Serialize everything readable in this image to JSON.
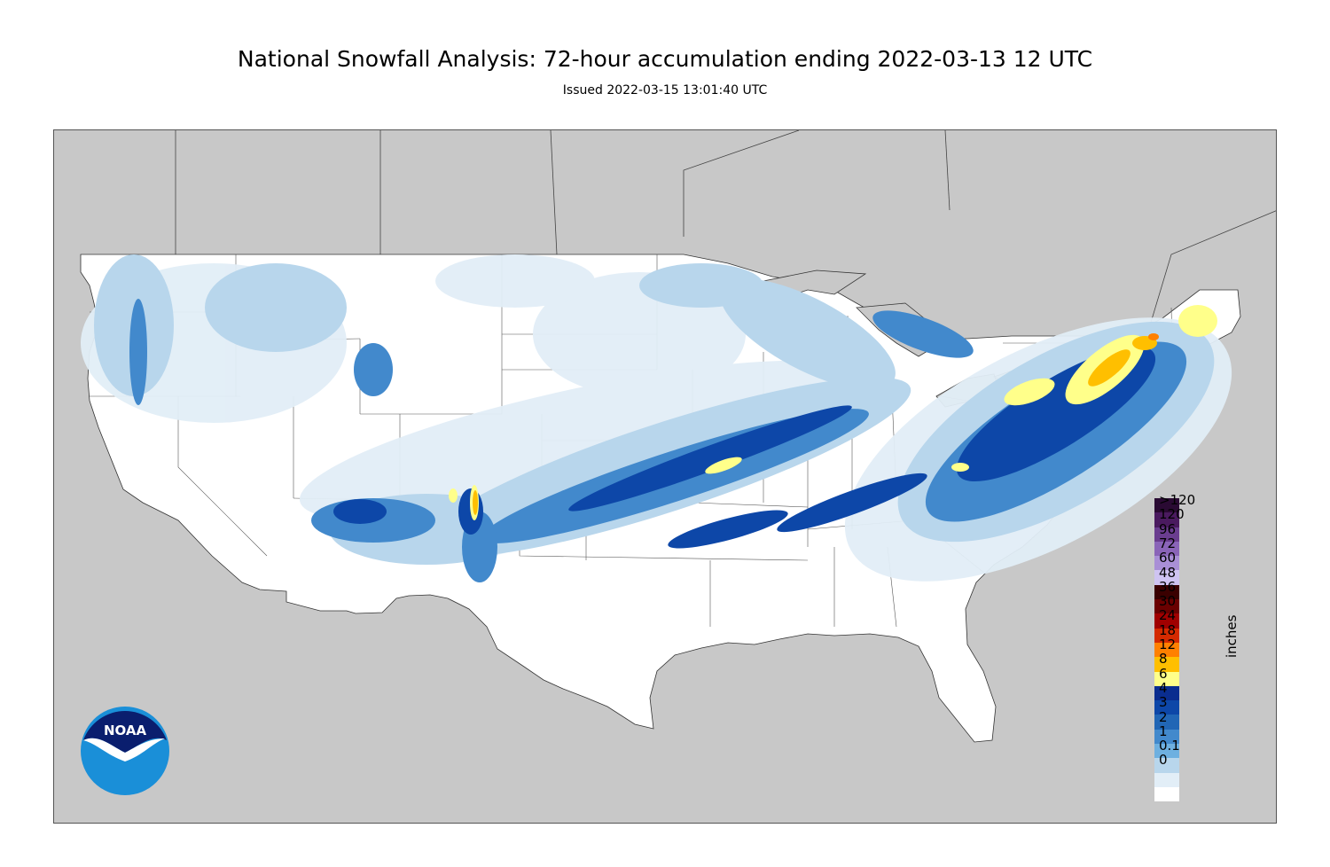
{
  "header": {
    "title": "National Snowfall Analysis: 72-hour accumulation ending 2022-03-13 12 UTC",
    "issued": "Issued 2022-03-15 13:01:40 UTC"
  },
  "logo": {
    "text": "NOAA",
    "icon": "noaa-logo"
  },
  "legend": {
    "units": "inches",
    "bins": [
      {
        "label": ">120",
        "color": "#2a0a33"
      },
      {
        "label": "120",
        "color": "#4a1a5f"
      },
      {
        "label": "96",
        "color": "#6a3d8f"
      },
      {
        "label": "72",
        "color": "#8a64b8"
      },
      {
        "label": "60",
        "color": "#a98fd6"
      },
      {
        "label": "48",
        "color": "#cfc4f2"
      },
      {
        "label": "36",
        "color": "#3a0000"
      },
      {
        "label": "30",
        "color": "#6a0000"
      },
      {
        "label": "24",
        "color": "#a00000"
      },
      {
        "label": "18",
        "color": "#d42a00"
      },
      {
        "label": "12",
        "color": "#ff8000"
      },
      {
        "label": "8",
        "color": "#ffbf00"
      },
      {
        "label": "6",
        "color": "#ffff8a"
      },
      {
        "label": "4",
        "color": "#0a2d8f"
      },
      {
        "label": "3",
        "color": "#0d47a8"
      },
      {
        "label": "2",
        "color": "#2166b5"
      },
      {
        "label": "1",
        "color": "#4289cc"
      },
      {
        "label": "0.1",
        "color": "#6eb0e0"
      },
      {
        "label": "0",
        "color": "#b8d6ec"
      },
      {
        "label": "",
        "color": "#e2eef7"
      },
      {
        "label": "",
        "color": "#ffffff"
      }
    ]
  },
  "colors": {
    "background": "#c8c8c8",
    "land": "#ffffff",
    "snow_trace": "#e2eef7",
    "snow_light": "#b8d6ec",
    "snow_moderate": "#4289cc",
    "snow_heavy": "#0d47a8",
    "snow_6in": "#ffff8a",
    "snow_8in": "#ffbf00",
    "snow_12in": "#ff8000"
  }
}
